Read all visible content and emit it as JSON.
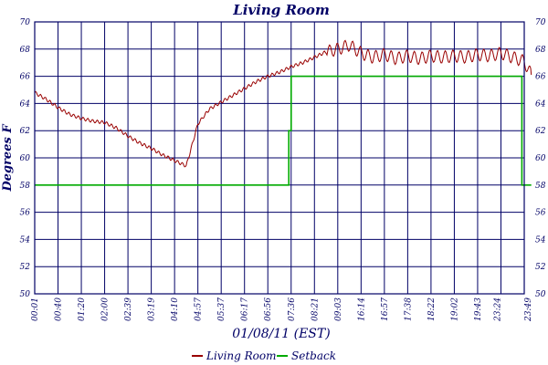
{
  "chart_data": {
    "type": "line",
    "title": "Living Room",
    "xlabel": "01/08/11 (EST)",
    "ylabel": "Degrees F",
    "ylim": [
      50,
      70
    ],
    "y_ticks": [
      50,
      52,
      54,
      56,
      58,
      60,
      62,
      64,
      66,
      68,
      70
    ],
    "x_ticks": [
      "00:01",
      "00:40",
      "01:20",
      "02:00",
      "02:39",
      "03:19",
      "04:10",
      "04:57",
      "05:37",
      "06:17",
      "06:56",
      "07:36",
      "08:21",
      "09:03",
      "16:14",
      "16:57",
      "17:38",
      "18:22",
      "19:02",
      "19:43",
      "23:24",
      "23:49"
    ],
    "grid": true,
    "legend_position": "bottom-center",
    "colors": {
      "Living Room": "#990000",
      "Setback": "#00aa00",
      "frame": "#000066"
    },
    "series": [
      {
        "name": "Living Room",
        "x": [
          0,
          0.5,
          1,
          1.5,
          2,
          2.5,
          3,
          3.5,
          4,
          4.5,
          5,
          5.5,
          6,
          6.5,
          7,
          7.5,
          8,
          8.5,
          9,
          9.5,
          10,
          10.5,
          11,
          11.5,
          12,
          12.5,
          13,
          13.5,
          14,
          14.5,
          15,
          15.5,
          16,
          16.5,
          17,
          17.5,
          18,
          18.5,
          19,
          19.5,
          20,
          20.5,
          21,
          21.3
        ],
        "y": [
          64.8,
          64.3,
          63.7,
          63.2,
          62.9,
          62.7,
          62.6,
          62.2,
          61.6,
          61.1,
          60.7,
          60.2,
          59.8,
          59.4,
          62.5,
          63.6,
          64.1,
          64.6,
          65.1,
          65.6,
          66.0,
          66.3,
          66.7,
          67.0,
          67.4,
          67.8,
          68.0,
          68.3,
          67.7,
          67.4,
          67.6,
          67.3,
          67.5,
          67.3,
          67.5,
          67.4,
          67.5,
          67.4,
          67.6,
          67.5,
          67.7,
          67.4,
          67.1,
          66.1
        ]
      },
      {
        "name": "Setback",
        "x": [
          0,
          10.9,
          10.9,
          11.0,
          11.0,
          20.9,
          20.9,
          21.3
        ],
        "y": [
          58,
          58,
          62,
          62,
          66,
          66,
          58,
          58
        ]
      }
    ]
  }
}
